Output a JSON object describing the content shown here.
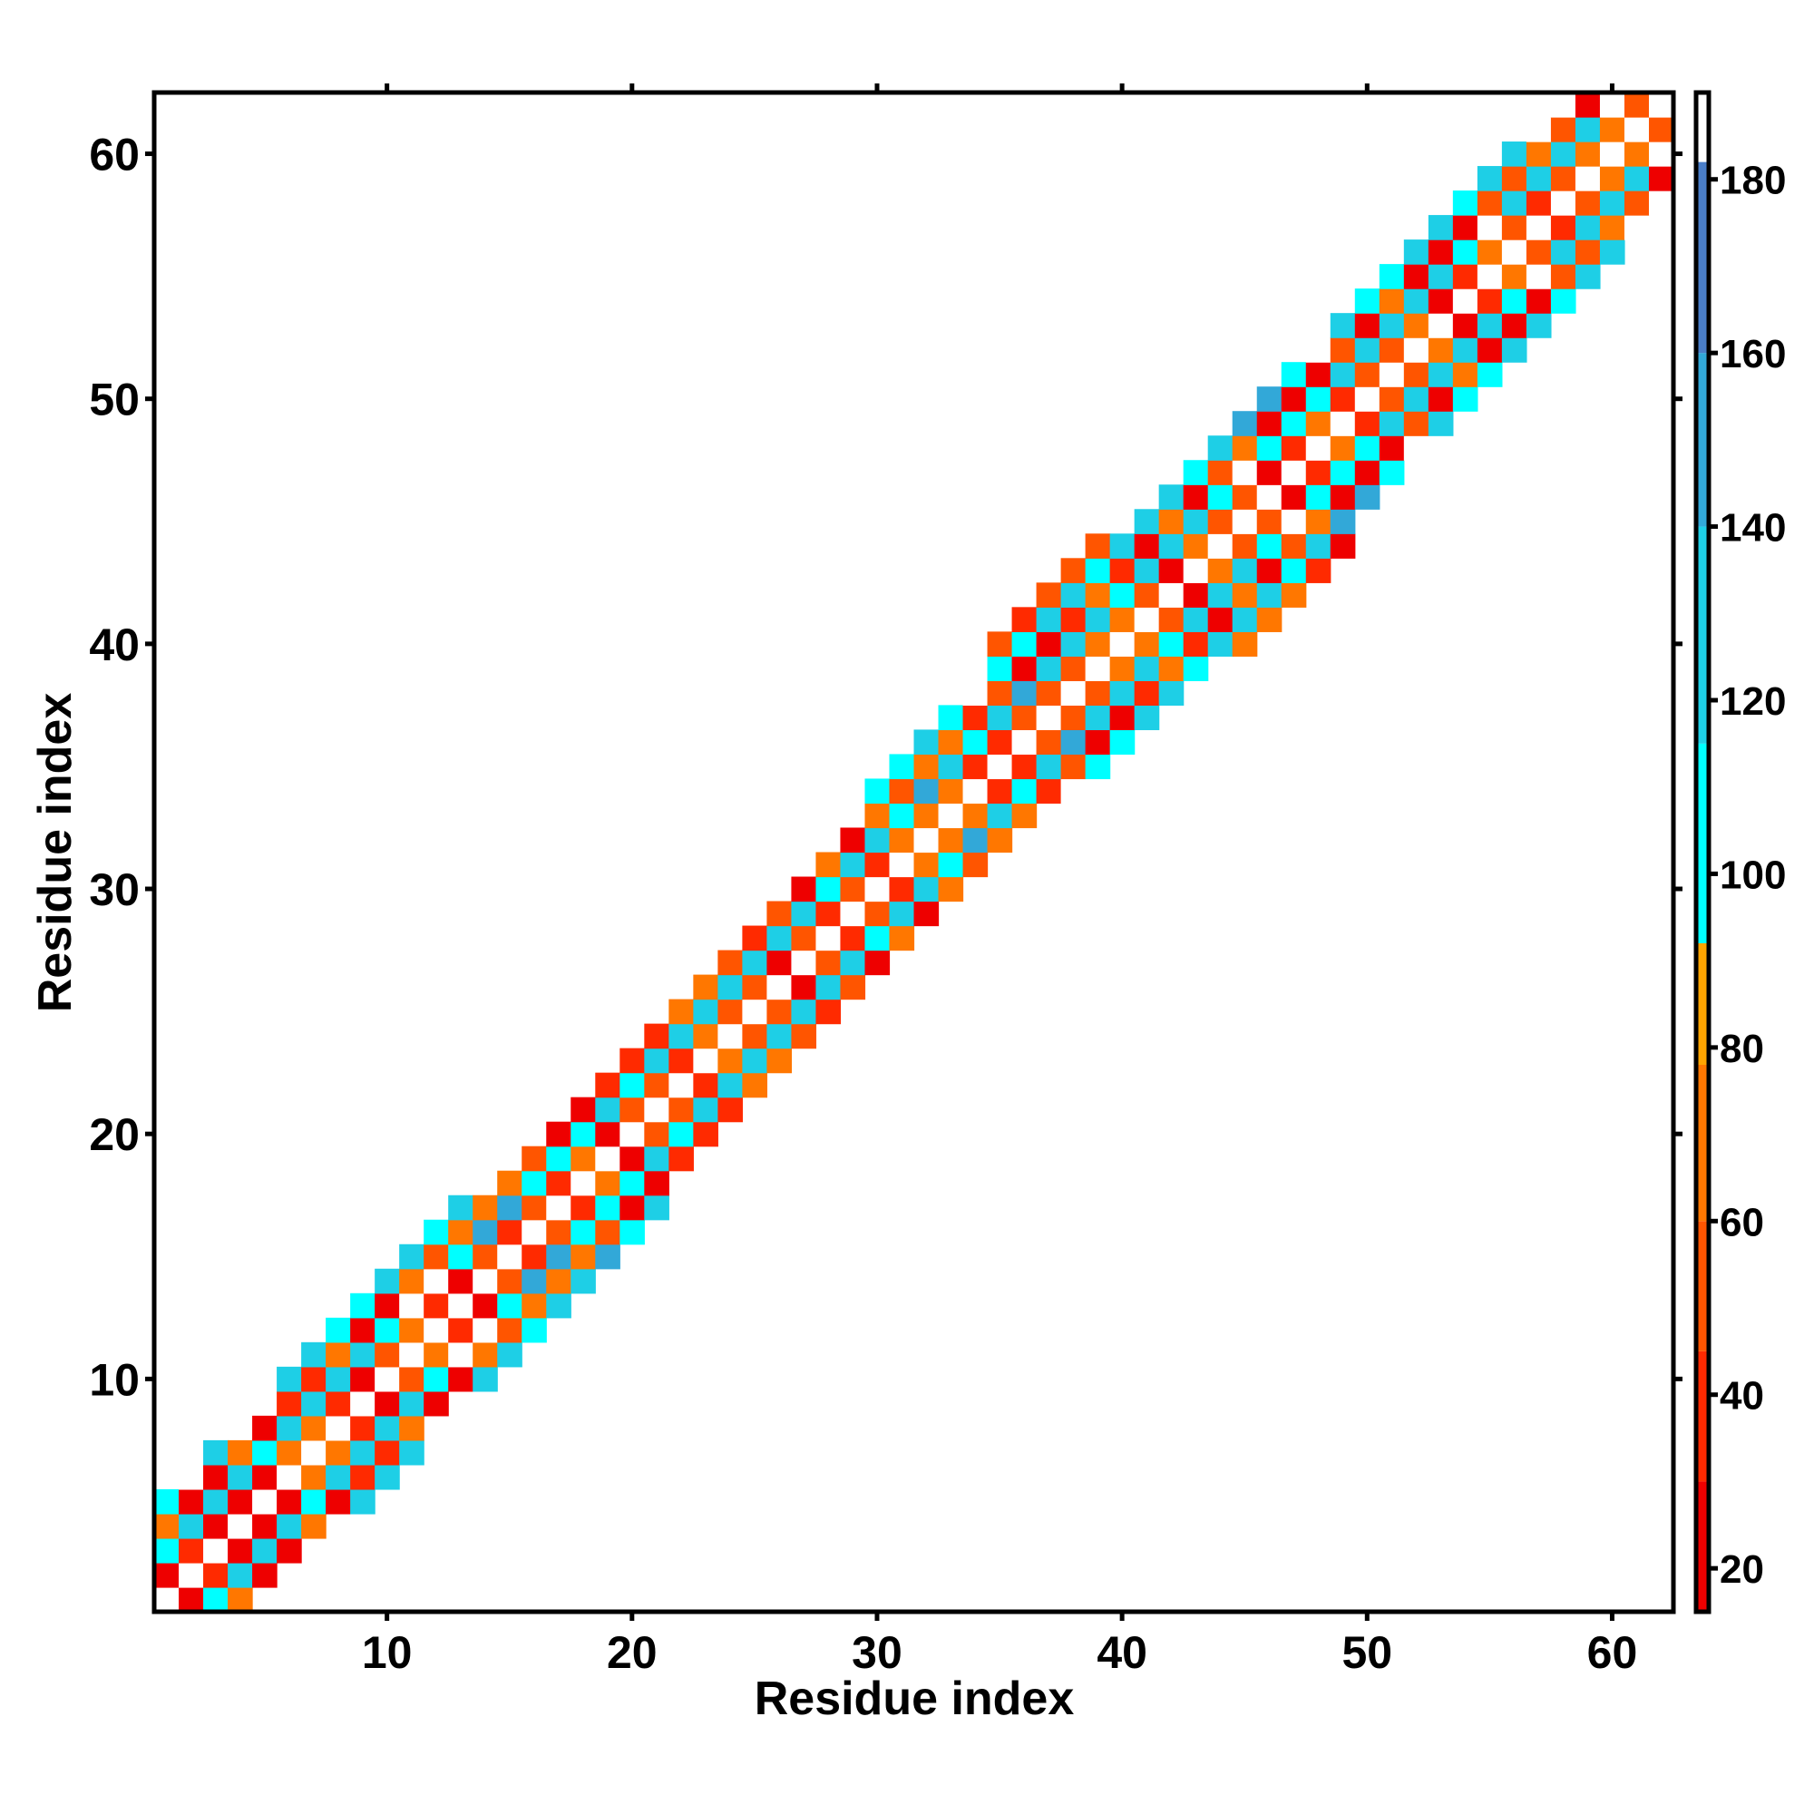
{
  "chart_data": {
    "type": "heatmap",
    "title": "",
    "xlabel": "Residue index",
    "ylabel": "Residue index",
    "xlim": [
      0.5,
      62.5
    ],
    "ylim": [
      0.5,
      62.5
    ],
    "x_ticks": [
      "10",
      "20",
      "30",
      "40",
      "50",
      "60"
    ],
    "y_ticks": [
      "10",
      "20",
      "30",
      "40",
      "50",
      "60"
    ],
    "x_tick_values": [
      10,
      20,
      30,
      40,
      50,
      60
    ],
    "y_tick_values": [
      10,
      20,
      30,
      40,
      50,
      60
    ],
    "grid": false,
    "colorbar": {
      "range": [
        15,
        190
      ],
      "ticks": [
        "20",
        "40",
        "60",
        "80",
        "100",
        "120",
        "140",
        "160",
        "180"
      ],
      "tick_values": [
        20,
        40,
        60,
        80,
        100,
        120,
        140,
        160,
        180
      ],
      "colors": [
        "#ee0000",
        "#ff2a00",
        "#ff5500",
        "#ff7700",
        "#ffa500",
        "#00ffff",
        "#1ecfe6",
        "#32a8d8",
        "#4a7ec8",
        "#ffffff"
      ],
      "stops": [
        15,
        30,
        45,
        60,
        78,
        92,
        115,
        140,
        160,
        182,
        190
      ]
    },
    "band_halfwidth_pattern": [
      3,
      3,
      3,
      3,
      4,
      4,
      4,
      3,
      3,
      4,
      4,
      4,
      4,
      4,
      4,
      4,
      4,
      3,
      3,
      3,
      3,
      3,
      3,
      3,
      3,
      3,
      3,
      3,
      3,
      3,
      3,
      3,
      3,
      4,
      4,
      4,
      4,
      4,
      4,
      5,
      5,
      5,
      5,
      5,
      4,
      4,
      4,
      4,
      4,
      4,
      4,
      4,
      4,
      4,
      4,
      4,
      4,
      4,
      4,
      4,
      4,
      4
    ],
    "value_pattern": "alternating orange/red and cyan along diagonals; diagonal cells white"
  }
}
